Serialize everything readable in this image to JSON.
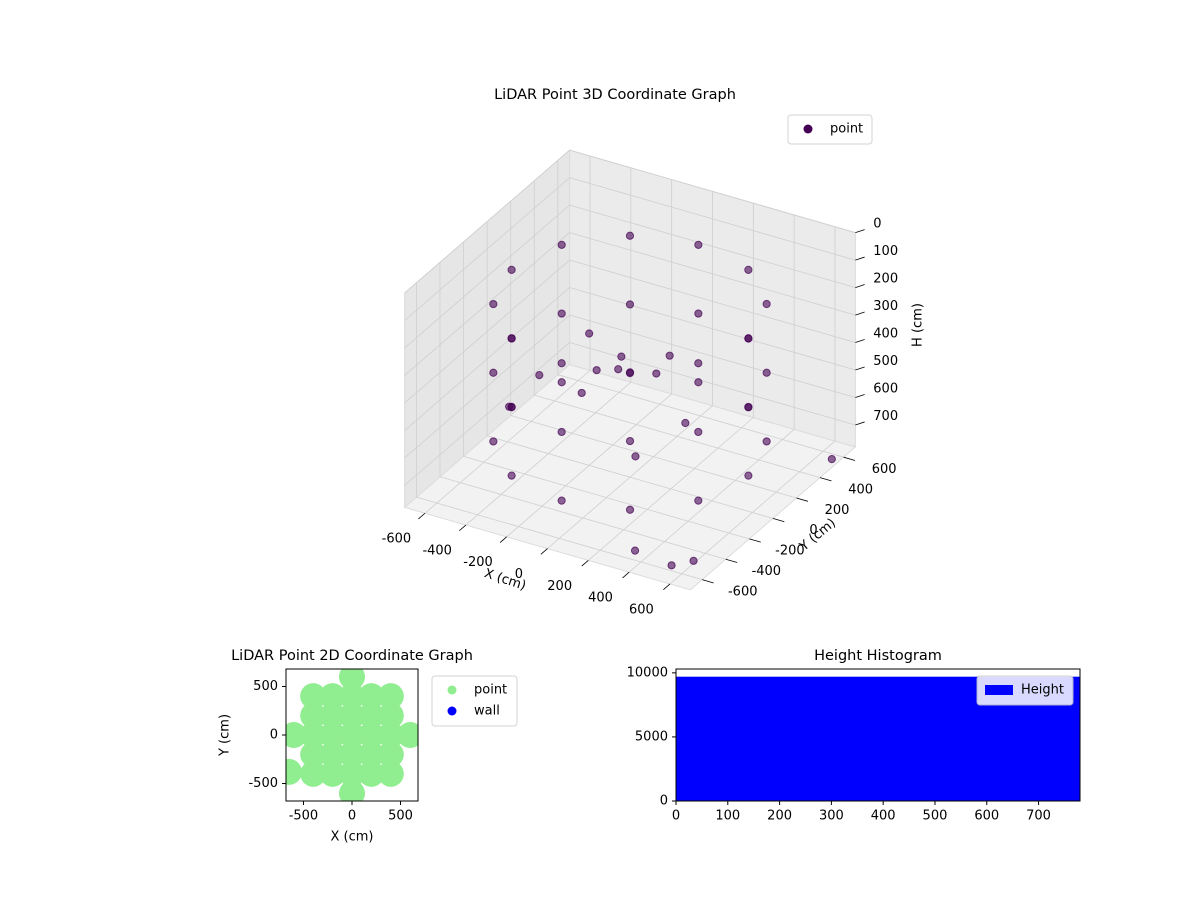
{
  "chart_data": [
    {
      "type": "scatter3d",
      "title": "LiDAR Point 3D Coordinate Graph",
      "xlabel": "X (cm)",
      "ylabel": "Y (cm)",
      "zlabel": "H (cm)",
      "xlim": [
        -700,
        700
      ],
      "ylim": [
        -700,
        700
      ],
      "zlim": [
        780,
        0
      ],
      "xticks": [
        -600,
        -400,
        -200,
        0,
        200,
        400,
        600
      ],
      "yticks": [
        -600,
        -400,
        -200,
        0,
        200,
        400,
        600
      ],
      "zticks": [
        0,
        100,
        200,
        300,
        400,
        500,
        600,
        700
      ],
      "grid": true,
      "legend": "upper right",
      "series": [
        {
          "name": "point",
          "color": "#440154",
          "x": [
            580,
            502,
            290,
            0,
            -290,
            -502,
            -580,
            -502,
            -290,
            0,
            290,
            502,
            580,
            502,
            290,
            0,
            -290,
            -502,
            -580,
            -502,
            -290,
            0,
            290,
            502,
            580,
            502,
            290,
            0,
            -290,
            -502,
            -580,
            -502,
            -290,
            0,
            290,
            502,
            -200,
            -100,
            0,
            -250,
            -150,
            100,
            300,
            200,
            -300,
            50,
            400,
            550,
            600,
            -650,
            700
          ],
          "y": [
            0,
            290,
            502,
            580,
            502,
            290,
            0,
            -290,
            -502,
            -580,
            -502,
            -290,
            0,
            290,
            502,
            580,
            502,
            290,
            0,
            -290,
            -502,
            -580,
            -502,
            -290,
            0,
            290,
            502,
            580,
            502,
            290,
            0,
            -290,
            -502,
            -580,
            -502,
            -290,
            0,
            100,
            -100,
            150,
            -150,
            50,
            -50,
            -300,
            -250,
            250,
            -650,
            -600,
            -500,
            100,
            500
          ],
          "z": [
            150,
            150,
            150,
            150,
            150,
            150,
            150,
            150,
            150,
            150,
            150,
            150,
            400,
            400,
            400,
            400,
            400,
            400,
            400,
            400,
            400,
            400,
            400,
            400,
            650,
            650,
            650,
            650,
            650,
            650,
            650,
            650,
            650,
            650,
            650,
            650,
            300,
            400,
            350,
            500,
            450,
            400,
            500,
            550,
            380,
            420,
            720,
            760,
            770,
            700,
            750
          ]
        }
      ]
    },
    {
      "type": "scatter",
      "title": "LiDAR Point 2D Coordinate Graph",
      "xlabel": "X (cm)",
      "ylabel": "Y (cm)",
      "xlim": [
        -680,
        680
      ],
      "ylim": [
        -680,
        680
      ],
      "xticks": [
        -500,
        0,
        500
      ],
      "yticks": [
        -500,
        0,
        500
      ],
      "legend": "outside right",
      "series": [
        {
          "name": "point",
          "color": "#90ee90",
          "x": [
            0,
            -400,
            -200,
            0,
            200,
            400,
            -400,
            -200,
            0,
            200,
            400,
            -600,
            -400,
            -200,
            0,
            200,
            400,
            600,
            -400,
            -200,
            0,
            200,
            400,
            -400,
            -200,
            0,
            200,
            400,
            0,
            -650
          ],
          "y": [
            -600,
            -400,
            -400,
            -400,
            -400,
            -400,
            -200,
            -200,
            -200,
            -200,
            -200,
            0,
            0,
            0,
            0,
            0,
            0,
            0,
            200,
            200,
            200,
            200,
            200,
            400,
            400,
            400,
            400,
            400,
            600,
            -380
          ]
        },
        {
          "name": "wall",
          "color": "#0000ff",
          "x": [],
          "y": []
        }
      ]
    },
    {
      "type": "histogram",
      "title": "Height Histogram",
      "xlim": [
        0,
        780
      ],
      "ylim": [
        0,
        10300
      ],
      "xticks": [
        0,
        100,
        200,
        300,
        400,
        500,
        600,
        700
      ],
      "yticks": [
        0,
        5000,
        10000
      ],
      "legend": "upper right",
      "series": [
        {
          "name": "Height",
          "color": "#0000ff",
          "bins": [
            0,
            780
          ],
          "values": [
            9700
          ]
        }
      ]
    }
  ]
}
